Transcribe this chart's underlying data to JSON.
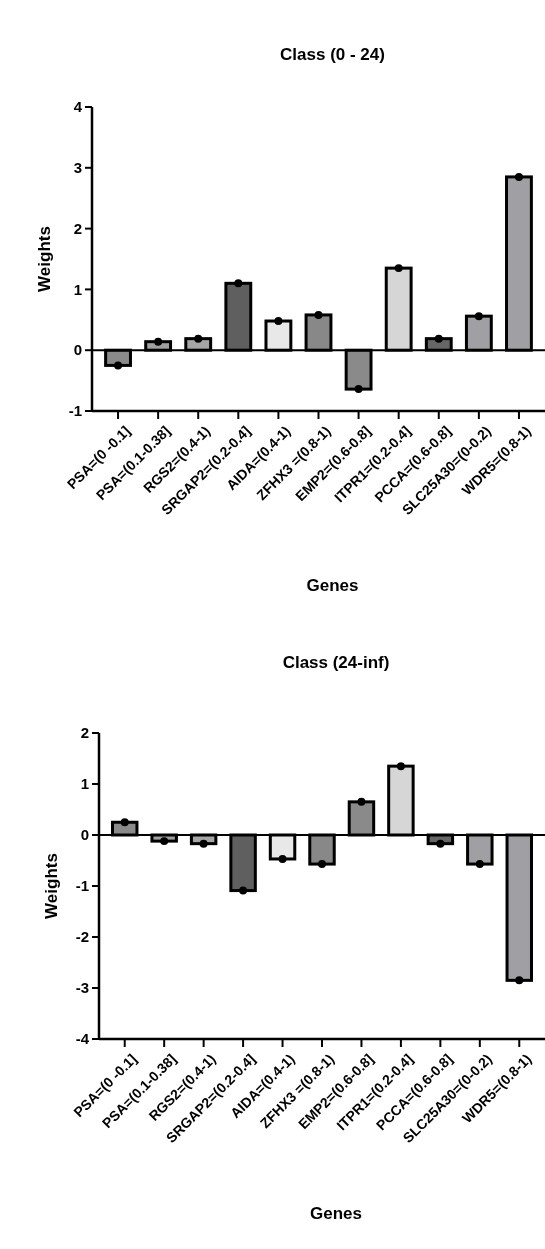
{
  "chart_data": [
    {
      "type": "bar",
      "title": "Class (0 - 24)",
      "xlabel": "Genes",
      "ylabel": "Weights",
      "categories": [
        "PSA=(0 -0.1]",
        "PSA=(0.1-0.38]",
        "RGS2=(0.4-1)",
        "SRGAP2=(0.2-0.4]",
        "AIDA=(0.4-1)",
        "ZFHX3 =(0.8-1)",
        "EMP2=(0.6-0.8]",
        "ITPR1=(0.2-0.4]",
        "PCCA=(0.6-0.8]",
        "SLC25A30=(0-0.2)",
        "WDR5=(0.8-1)"
      ],
      "ylim": [
        -1,
        4
      ],
      "yticks": [
        -1,
        0,
        1,
        2,
        3,
        4
      ],
      "marker": "circle",
      "series": [
        {
          "values": [
            -0.25,
            0.14,
            0.19,
            1.1,
            0.48,
            0.58,
            -0.64,
            1.35,
            0.19,
            0.56,
            2.85
          ],
          "colors": [
            "#8a8a8a",
            "#a0a0a0",
            "#a6a6a6",
            "#5f5f5f",
            "#e8e8e8",
            "#888888",
            "#8a8a8a",
            "#d6d6d6",
            "#666666",
            "#a0a0a4",
            "#a0a0a4"
          ]
        },
        {
          "type": "scatter",
          "x": [
            "PSA=(0 -0.1]",
            "PSA=(0.1-0.38]",
            "RGS2=(0.4-1)",
            "SRGAP2=(0.2-0.4]",
            "AIDA=(0.4-1)",
            "ZFHX3 =(0.8-1)",
            "EMP2=(0.6-0.8]",
            "ITPR1=(0.2-0.4]",
            "PCCA=(0.6-0.8]",
            "SLC25A30=(0-0.2)",
            "WDR5=(0.8-1)"
          ],
          "values": [
            -0.25,
            0.14,
            0.19,
            1.1,
            0.48,
            0.58,
            -0.64,
            1.35,
            0.19,
            0.56,
            2.85
          ],
          "color": "#000000"
        }
      ]
    },
    {
      "type": "bar",
      "title": "Class (24-inf)",
      "xlabel": "Genes",
      "ylabel": "Weights",
      "categories": [
        "PSA=(0 -0.1]",
        "PSA=(0.1-0.38]",
        "RGS2=(0.4-1)",
        "SRGAP2=(0.2-0.4]",
        "AIDA=(0.4-1)",
        "ZFHX3 =(0.8-1)",
        "EMP2=(0.6-0.8]",
        "ITPR1=(0.2-0.4]",
        "PCCA=(0.6-0.8]",
        "SLC25A30=(0-0.2)",
        "WDR5=(0.8-1)"
      ],
      "ylim": [
        -4,
        2
      ],
      "yticks": [
        -4,
        -3,
        -2,
        -1,
        0,
        1,
        2
      ],
      "marker": "circle",
      "series": [
        {
          "values": [
            0.25,
            -0.12,
            -0.17,
            -1.09,
            -0.47,
            -0.57,
            0.65,
            1.35,
            -0.17,
            -0.57,
            -2.85
          ],
          "colors": [
            "#8a8a8a",
            "#a0a0a0",
            "#a6a6a6",
            "#5f5f5f",
            "#e8e8e8",
            "#888888",
            "#8a8a8a",
            "#d6d6d6",
            "#666666",
            "#a0a0a4",
            "#a0a0a4"
          ]
        },
        {
          "type": "scatter",
          "x": [
            "PSA=(0 -0.1]",
            "PSA=(0.1-0.38]",
            "RGS2=(0.4-1)",
            "SRGAP2=(0.2-0.4]",
            "AIDA=(0.4-1)",
            "ZFHX3 =(0.8-1)",
            "EMP2=(0.6-0.8]",
            "ITPR1=(0.2-0.4]",
            "PCCA=(0.6-0.8]",
            "SLC25A30=(0-0.2)",
            "WDR5=(0.8-1)"
          ],
          "values": [
            0.25,
            -0.12,
            -0.17,
            -1.09,
            -0.47,
            -0.57,
            0.65,
            1.35,
            -0.17,
            -0.57,
            -2.85
          ],
          "color": "#000000"
        }
      ]
    }
  ]
}
